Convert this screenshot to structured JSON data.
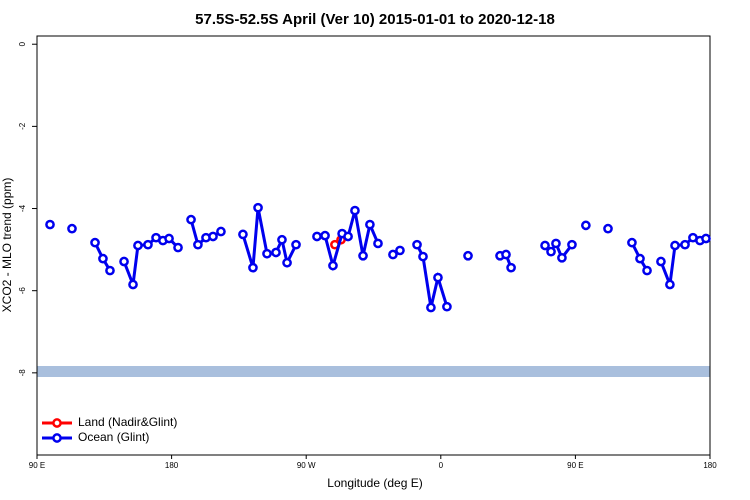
{
  "chart_data": {
    "type": "line",
    "title": "57.5S-52.5S April (Ver 10)   2015-01-01 to 2020-12-18",
    "x_label": "Longitude (deg E)",
    "y_label": "XCO2 - MLO trend (ppm)",
    "xlim": [
      90,
      540
    ],
    "xticks": [
      {
        "value": 90,
        "label": "90 E"
      },
      {
        "value": 180,
        "label": "180"
      },
      {
        "value": 270,
        "label": "90 W"
      },
      {
        "value": 360,
        "label": "0"
      },
      {
        "value": 450,
        "label": "90 E"
      },
      {
        "value": 540,
        "label": "180"
      }
    ],
    "ylim": [
      -10,
      0.2
    ],
    "yticks": [
      0,
      -2,
      -4,
      -6,
      -8
    ],
    "legend": "bottom-left",
    "series": [
      {
        "name": "Land (Nadir&Glint)",
        "color": "#ff0000",
        "x": [
          289.2,
          293.3
        ],
        "values": [
          -4.88,
          -4.76
        ]
      },
      {
        "name": "Ocean (Glint)",
        "color": "#0000ee",
        "x": [
          98.7,
          null,
          113.4,
          null,
          128.8,
          134.1,
          138.8,
          null,
          148.2,
          154.2,
          157.5,
          164.2,
          169.6,
          174.2,
          178.3,
          184.3,
          null,
          193,
          197.6,
          203,
          207.7,
          213,
          null,
          227.7,
          234.4,
          237.8,
          243.8,
          249.8,
          253.8,
          257.2,
          263.2,
          null,
          277.2,
          282.6,
          287.9,
          294,
          298,
          302.6,
          308,
          312.6,
          318,
          null,
          328,
          332.7,
          null,
          344.1,
          348.1,
          353.4,
          358.1,
          364.1,
          null,
          378.2,
          null,
          399.6,
          403.6,
          407,
          null,
          429.7,
          433.7,
          437,
          441,
          447.7,
          null,
          457,
          null,
          471.8,
          null,
          487.8,
          493.2,
          497.9,
          null,
          507.2,
          513.2,
          516.6,
          523.3,
          528.6,
          533.3,
          537.3
        ],
        "values": [
          -4.39,
          null,
          -4.49,
          null,
          -4.83,
          -5.22,
          -5.51,
          null,
          -5.29,
          -5.85,
          -4.9,
          -4.88,
          -4.71,
          -4.78,
          -4.73,
          -4.95,
          null,
          -4.27,
          -4.88,
          -4.71,
          -4.68,
          -4.56,
          null,
          -4.63,
          -5.44,
          -3.98,
          -5.1,
          -5.07,
          -4.76,
          -5.32,
          -4.88,
          null,
          -4.68,
          -4.66,
          -5.39,
          -4.61,
          -4.68,
          -4.05,
          -5.15,
          -4.39,
          -4.85,
          null,
          -5.12,
          -5.02,
          null,
          -4.88,
          -5.17,
          -6.41,
          -5.68,
          -6.39,
          null,
          -5.15,
          null,
          -5.15,
          -5.12,
          -5.44,
          null,
          -4.9,
          -5.05,
          -4.85,
          -5.2,
          -4.88,
          null,
          -4.41,
          null,
          -4.49,
          null,
          -4.83,
          -5.22,
          -5.51,
          null,
          -5.29,
          -5.85,
          -4.9,
          -4.88,
          -4.71,
          -4.78,
          -4.73
        ]
      }
    ]
  }
}
